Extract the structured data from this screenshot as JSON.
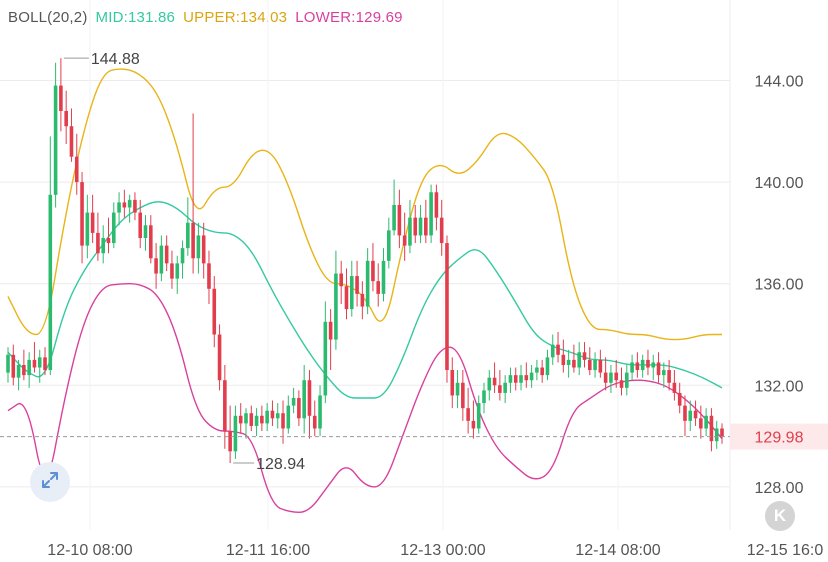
{
  "indicator": {
    "name": "BOLL(20,2)",
    "mid_label": "MID:131.86",
    "upper_label": "UPPER:134.03",
    "lower_label": "LOWER:129.69"
  },
  "colors": {
    "up": "#2cbb6e",
    "down": "#e23d4d",
    "mid": "#35c9a0",
    "upper": "#e8b418",
    "lower": "#d9409e",
    "grid": "#ececec",
    "axis_text": "#555555",
    "price_line": "#9a9a9a",
    "tag_bg": "#fde9ea"
  },
  "icons": {
    "expand": "diagonal-expand-arrows-icon",
    "scroll_to_latest": "chevron-double-left-icon"
  },
  "scroll_button_glyph": "K",
  "chart_data": {
    "type": "candlestick",
    "y_axis": {
      "ticks": [
        128.0,
        132.0,
        136.0,
        140.0,
        144.0
      ],
      "tick_labels": [
        "128.00",
        "132.00",
        "136.00",
        "140.00",
        "144.00"
      ],
      "position": "right"
    },
    "x_axis": {
      "tick_labels": [
        "12-10 08:00",
        "12-11 16:00",
        "12-13 00:00",
        "12-14 08:00",
        "12-15 16:0"
      ]
    },
    "grid": true,
    "high_marker": "144.88",
    "low_marker": "128.94",
    "last_price": {
      "value": 129.98,
      "label": "129.98"
    },
    "bollinger": {
      "period": 20,
      "k": 2,
      "mid": 131.86,
      "upper": 134.03,
      "lower": 129.69,
      "upper_series": [
        135.5,
        134.0,
        134.0,
        138.5,
        142.0,
        144.3,
        144.5,
        144.3,
        143.5,
        141.5,
        138.5,
        139.8,
        139.8,
        141.2,
        141.3,
        139.8,
        137.5,
        136.0,
        136.0,
        135.5,
        134.0,
        137.5,
        140.2,
        140.8,
        140.2,
        140.8,
        142.0,
        141.8,
        141.0,
        140.0,
        136.0,
        134.2,
        134.2,
        134.0,
        134.0,
        133.8,
        133.8,
        134.0,
        134.0
      ],
      "mid_series": [
        133.3,
        132.5,
        132.2,
        135.0,
        136.5,
        137.5,
        138.5,
        139.0,
        139.3,
        139.0,
        138.3,
        138.0,
        138.0,
        137.3,
        135.8,
        134.5,
        133.3,
        132.3,
        131.5,
        131.5,
        131.5,
        133.0,
        135.0,
        136.3,
        137.0,
        137.5,
        136.5,
        135.3,
        134.0,
        133.5,
        133.3,
        133.0,
        133.0,
        132.8,
        132.8,
        132.8,
        132.6,
        132.3,
        131.9
      ],
      "lower_series": [
        131.0,
        131.5,
        127.5,
        131.5,
        134.5,
        135.9,
        136.0,
        136.0,
        135.6,
        134.0,
        131.0,
        130.2,
        130.2,
        130.0,
        127.3,
        127.0,
        127.0,
        128.0,
        129.0,
        128.0,
        128.0,
        130.0,
        132.0,
        133.5,
        133.5,
        131.0,
        129.5,
        128.8,
        128.2,
        128.6,
        131.0,
        131.5,
        132.0,
        132.2,
        132.2,
        132.0,
        131.5,
        130.8,
        129.9
      ]
    },
    "candles": [
      {
        "o": 132.5,
        "h": 133.5,
        "l": 132.1,
        "c": 133.2
      },
      {
        "o": 133.2,
        "h": 133.6,
        "l": 132.0,
        "c": 132.3
      },
      {
        "o": 132.3,
        "h": 133.0,
        "l": 131.8,
        "c": 132.8
      },
      {
        "o": 132.8,
        "h": 133.4,
        "l": 132.2,
        "c": 132.4
      },
      {
        "o": 132.4,
        "h": 133.3,
        "l": 131.9,
        "c": 133.0
      },
      {
        "o": 133.0,
        "h": 133.7,
        "l": 132.5,
        "c": 132.7
      },
      {
        "o": 132.7,
        "h": 133.4,
        "l": 132.1,
        "c": 133.1
      },
      {
        "o": 133.1,
        "h": 133.5,
        "l": 132.4,
        "c": 132.6
      },
      {
        "o": 132.6,
        "h": 141.8,
        "l": 132.4,
        "c": 139.5
      },
      {
        "o": 139.5,
        "h": 144.7,
        "l": 139.0,
        "c": 143.8
      },
      {
        "o": 143.8,
        "h": 144.88,
        "l": 142.0,
        "c": 142.8
      },
      {
        "o": 142.8,
        "h": 143.6,
        "l": 141.5,
        "c": 142.2
      },
      {
        "o": 142.2,
        "h": 142.9,
        "l": 140.8,
        "c": 141.0
      },
      {
        "o": 141.0,
        "h": 141.9,
        "l": 139.5,
        "c": 140.0
      },
      {
        "o": 140.0,
        "h": 140.4,
        "l": 136.8,
        "c": 137.5
      },
      {
        "o": 137.5,
        "h": 139.5,
        "l": 137.0,
        "c": 138.8
      },
      {
        "o": 138.8,
        "h": 139.5,
        "l": 137.6,
        "c": 138.0
      },
      {
        "o": 138.0,
        "h": 138.8,
        "l": 136.9,
        "c": 137.2
      },
      {
        "o": 137.2,
        "h": 138.3,
        "l": 136.8,
        "c": 137.8
      },
      {
        "o": 137.8,
        "h": 138.6,
        "l": 137.2,
        "c": 137.6
      },
      {
        "o": 137.6,
        "h": 139.2,
        "l": 137.4,
        "c": 138.8
      },
      {
        "o": 138.8,
        "h": 139.6,
        "l": 138.3,
        "c": 139.2
      },
      {
        "o": 139.2,
        "h": 139.7,
        "l": 138.6,
        "c": 139.0
      },
      {
        "o": 139.0,
        "h": 139.5,
        "l": 138.4,
        "c": 139.3
      },
      {
        "o": 139.3,
        "h": 139.6,
        "l": 138.5,
        "c": 138.8
      },
      {
        "o": 138.8,
        "h": 139.3,
        "l": 137.4,
        "c": 137.8
      },
      {
        "o": 137.8,
        "h": 138.7,
        "l": 137.3,
        "c": 138.3
      },
      {
        "o": 138.3,
        "h": 138.7,
        "l": 136.8,
        "c": 137.0
      },
      {
        "o": 137.0,
        "h": 137.6,
        "l": 135.8,
        "c": 136.4
      },
      {
        "o": 136.4,
        "h": 137.9,
        "l": 136.1,
        "c": 137.5
      },
      {
        "o": 137.5,
        "h": 137.9,
        "l": 136.5,
        "c": 136.8
      },
      {
        "o": 136.8,
        "h": 137.3,
        "l": 135.8,
        "c": 136.2
      },
      {
        "o": 136.2,
        "h": 137.1,
        "l": 135.6,
        "c": 136.8
      },
      {
        "o": 136.8,
        "h": 137.7,
        "l": 136.2,
        "c": 137.4
      },
      {
        "o": 137.4,
        "h": 139.4,
        "l": 137.1,
        "c": 138.4
      },
      {
        "o": 138.4,
        "h": 142.7,
        "l": 136.4,
        "c": 137.0
      },
      {
        "o": 137.0,
        "h": 138.4,
        "l": 136.4,
        "c": 137.9
      },
      {
        "o": 137.9,
        "h": 138.4,
        "l": 136.2,
        "c": 136.8
      },
      {
        "o": 136.8,
        "h": 137.3,
        "l": 135.2,
        "c": 135.8
      },
      {
        "o": 135.8,
        "h": 136.3,
        "l": 133.5,
        "c": 134.0
      },
      {
        "o": 134.0,
        "h": 134.4,
        "l": 131.8,
        "c": 132.2
      },
      {
        "o": 132.2,
        "h": 132.8,
        "l": 129.5,
        "c": 130.2
      },
      {
        "o": 130.2,
        "h": 131.2,
        "l": 128.94,
        "c": 129.4
      },
      {
        "o": 129.4,
        "h": 131.2,
        "l": 129.1,
        "c": 130.8
      },
      {
        "o": 130.8,
        "h": 131.3,
        "l": 130.1,
        "c": 130.5
      },
      {
        "o": 130.5,
        "h": 131.1,
        "l": 129.9,
        "c": 130.9
      },
      {
        "o": 130.9,
        "h": 131.2,
        "l": 130.2,
        "c": 130.4
      },
      {
        "o": 130.4,
        "h": 131.1,
        "l": 130.0,
        "c": 130.8
      },
      {
        "o": 130.8,
        "h": 131.2,
        "l": 130.2,
        "c": 130.5
      },
      {
        "o": 130.5,
        "h": 131.3,
        "l": 130.2,
        "c": 131.0
      },
      {
        "o": 131.0,
        "h": 131.4,
        "l": 130.4,
        "c": 130.7
      },
      {
        "o": 130.7,
        "h": 131.3,
        "l": 130.3,
        "c": 130.9
      },
      {
        "o": 130.9,
        "h": 131.4,
        "l": 129.7,
        "c": 130.3
      },
      {
        "o": 130.3,
        "h": 131.6,
        "l": 130.1,
        "c": 131.2
      },
      {
        "o": 131.2,
        "h": 131.9,
        "l": 130.9,
        "c": 131.5
      },
      {
        "o": 131.5,
        "h": 131.8,
        "l": 130.4,
        "c": 130.7
      },
      {
        "o": 130.7,
        "h": 132.8,
        "l": 130.1,
        "c": 132.2
      },
      {
        "o": 132.2,
        "h": 132.6,
        "l": 129.9,
        "c": 130.8
      },
      {
        "o": 130.8,
        "h": 131.4,
        "l": 130.0,
        "c": 130.3
      },
      {
        "o": 130.3,
        "h": 132.0,
        "l": 130.0,
        "c": 131.6
      },
      {
        "o": 131.6,
        "h": 135.3,
        "l": 131.3,
        "c": 134.5
      },
      {
        "o": 134.5,
        "h": 135.0,
        "l": 132.6,
        "c": 133.8
      },
      {
        "o": 133.8,
        "h": 137.3,
        "l": 133.4,
        "c": 136.4
      },
      {
        "o": 136.4,
        "h": 136.9,
        "l": 135.2,
        "c": 135.9
      },
      {
        "o": 135.9,
        "h": 136.6,
        "l": 134.6,
        "c": 135.0
      },
      {
        "o": 135.0,
        "h": 136.9,
        "l": 134.7,
        "c": 136.3
      },
      {
        "o": 136.3,
        "h": 136.9,
        "l": 135.1,
        "c": 135.6
      },
      {
        "o": 135.6,
        "h": 136.1,
        "l": 134.6,
        "c": 135.1
      },
      {
        "o": 135.1,
        "h": 137.4,
        "l": 134.8,
        "c": 136.9
      },
      {
        "o": 136.9,
        "h": 137.6,
        "l": 135.7,
        "c": 136.1
      },
      {
        "o": 136.1,
        "h": 136.8,
        "l": 135.1,
        "c": 135.6
      },
      {
        "o": 135.6,
        "h": 137.4,
        "l": 135.3,
        "c": 136.9
      },
      {
        "o": 136.9,
        "h": 138.6,
        "l": 136.6,
        "c": 138.1
      },
      {
        "o": 138.1,
        "h": 140.1,
        "l": 137.9,
        "c": 139.1
      },
      {
        "o": 139.1,
        "h": 139.7,
        "l": 137.4,
        "c": 137.9
      },
      {
        "o": 137.9,
        "h": 138.8,
        "l": 136.9,
        "c": 137.5
      },
      {
        "o": 137.5,
        "h": 139.3,
        "l": 137.2,
        "c": 138.6
      },
      {
        "o": 138.6,
        "h": 139.1,
        "l": 137.6,
        "c": 137.9
      },
      {
        "o": 137.9,
        "h": 139.1,
        "l": 137.6,
        "c": 138.6
      },
      {
        "o": 138.6,
        "h": 139.3,
        "l": 137.6,
        "c": 137.9
      },
      {
        "o": 137.9,
        "h": 139.9,
        "l": 137.6,
        "c": 139.6
      },
      {
        "o": 139.6,
        "h": 139.9,
        "l": 138.1,
        "c": 138.6
      },
      {
        "o": 138.6,
        "h": 139.3,
        "l": 137.1,
        "c": 137.6
      },
      {
        "o": 137.6,
        "h": 137.9,
        "l": 132.1,
        "c": 132.6
      },
      {
        "o": 132.6,
        "h": 133.1,
        "l": 131.1,
        "c": 131.6
      },
      {
        "o": 131.6,
        "h": 132.6,
        "l": 131.1,
        "c": 132.1
      },
      {
        "o": 132.1,
        "h": 132.6,
        "l": 130.6,
        "c": 131.1
      },
      {
        "o": 131.1,
        "h": 131.9,
        "l": 130.1,
        "c": 130.6
      },
      {
        "o": 130.6,
        "h": 131.4,
        "l": 129.9,
        "c": 130.3
      },
      {
        "o": 130.3,
        "h": 131.6,
        "l": 130.1,
        "c": 131.3
      },
      {
        "o": 131.3,
        "h": 132.1,
        "l": 130.9,
        "c": 131.8
      },
      {
        "o": 131.8,
        "h": 132.6,
        "l": 131.4,
        "c": 132.3
      },
      {
        "o": 132.3,
        "h": 132.9,
        "l": 131.7,
        "c": 132.0
      },
      {
        "o": 132.0,
        "h": 132.6,
        "l": 131.4,
        "c": 131.7
      },
      {
        "o": 131.7,
        "h": 132.4,
        "l": 131.3,
        "c": 132.1
      },
      {
        "o": 132.1,
        "h": 132.7,
        "l": 131.7,
        "c": 132.4
      },
      {
        "o": 132.4,
        "h": 132.7,
        "l": 131.8,
        "c": 132.1
      },
      {
        "o": 132.1,
        "h": 132.8,
        "l": 131.8,
        "c": 132.4
      },
      {
        "o": 132.4,
        "h": 132.9,
        "l": 131.9,
        "c": 132.2
      },
      {
        "o": 132.2,
        "h": 132.8,
        "l": 131.9,
        "c": 132.5
      },
      {
        "o": 132.5,
        "h": 133.0,
        "l": 132.2,
        "c": 132.7
      },
      {
        "o": 132.7,
        "h": 133.0,
        "l": 132.1,
        "c": 132.4
      },
      {
        "o": 132.4,
        "h": 133.4,
        "l": 132.2,
        "c": 133.1
      },
      {
        "o": 133.1,
        "h": 134.0,
        "l": 132.8,
        "c": 133.6
      },
      {
        "o": 133.6,
        "h": 134.1,
        "l": 132.9,
        "c": 133.2
      },
      {
        "o": 133.2,
        "h": 133.8,
        "l": 132.5,
        "c": 132.8
      },
      {
        "o": 132.8,
        "h": 133.4,
        "l": 132.3,
        "c": 133.0
      },
      {
        "o": 133.0,
        "h": 133.6,
        "l": 132.5,
        "c": 132.7
      },
      {
        "o": 132.7,
        "h": 133.7,
        "l": 132.4,
        "c": 133.3
      },
      {
        "o": 133.3,
        "h": 133.7,
        "l": 132.7,
        "c": 133.0
      },
      {
        "o": 133.0,
        "h": 133.5,
        "l": 132.4,
        "c": 132.6
      },
      {
        "o": 132.6,
        "h": 133.3,
        "l": 132.3,
        "c": 133.0
      },
      {
        "o": 133.0,
        "h": 133.4,
        "l": 132.3,
        "c": 132.5
      },
      {
        "o": 132.5,
        "h": 133.1,
        "l": 131.8,
        "c": 132.1
      },
      {
        "o": 132.1,
        "h": 132.8,
        "l": 131.7,
        "c": 132.5
      },
      {
        "o": 132.5,
        "h": 133.0,
        "l": 131.9,
        "c": 132.2
      },
      {
        "o": 132.2,
        "h": 132.7,
        "l": 131.6,
        "c": 131.9
      },
      {
        "o": 131.9,
        "h": 132.8,
        "l": 131.6,
        "c": 132.5
      },
      {
        "o": 132.5,
        "h": 133.2,
        "l": 132.2,
        "c": 132.9
      },
      {
        "o": 132.9,
        "h": 133.3,
        "l": 132.3,
        "c": 132.6
      },
      {
        "o": 132.6,
        "h": 133.2,
        "l": 132.3,
        "c": 133.0
      },
      {
        "o": 133.0,
        "h": 133.4,
        "l": 132.4,
        "c": 132.7
      },
      {
        "o": 132.7,
        "h": 133.2,
        "l": 132.2,
        "c": 132.9
      },
      {
        "o": 132.9,
        "h": 133.3,
        "l": 132.1,
        "c": 132.4
      },
      {
        "o": 132.4,
        "h": 132.9,
        "l": 131.9,
        "c": 132.6
      },
      {
        "o": 132.6,
        "h": 133.0,
        "l": 131.8,
        "c": 132.1
      },
      {
        "o": 132.1,
        "h": 132.6,
        "l": 131.4,
        "c": 131.7
      },
      {
        "o": 131.7,
        "h": 132.1,
        "l": 130.9,
        "c": 131.2
      },
      {
        "o": 131.2,
        "h": 131.6,
        "l": 130.0,
        "c": 130.6
      },
      {
        "o": 130.6,
        "h": 131.4,
        "l": 130.2,
        "c": 131.0
      },
      {
        "o": 131.0,
        "h": 131.4,
        "l": 130.4,
        "c": 130.7
      },
      {
        "o": 130.7,
        "h": 131.2,
        "l": 129.9,
        "c": 130.3
      },
      {
        "o": 130.3,
        "h": 131.1,
        "l": 130.0,
        "c": 130.8
      },
      {
        "o": 130.8,
        "h": 131.1,
        "l": 129.4,
        "c": 129.8
      },
      {
        "o": 129.8,
        "h": 130.6,
        "l": 129.5,
        "c": 130.3
      },
      {
        "o": 130.3,
        "h": 130.5,
        "l": 129.7,
        "c": 129.98
      }
    ]
  }
}
